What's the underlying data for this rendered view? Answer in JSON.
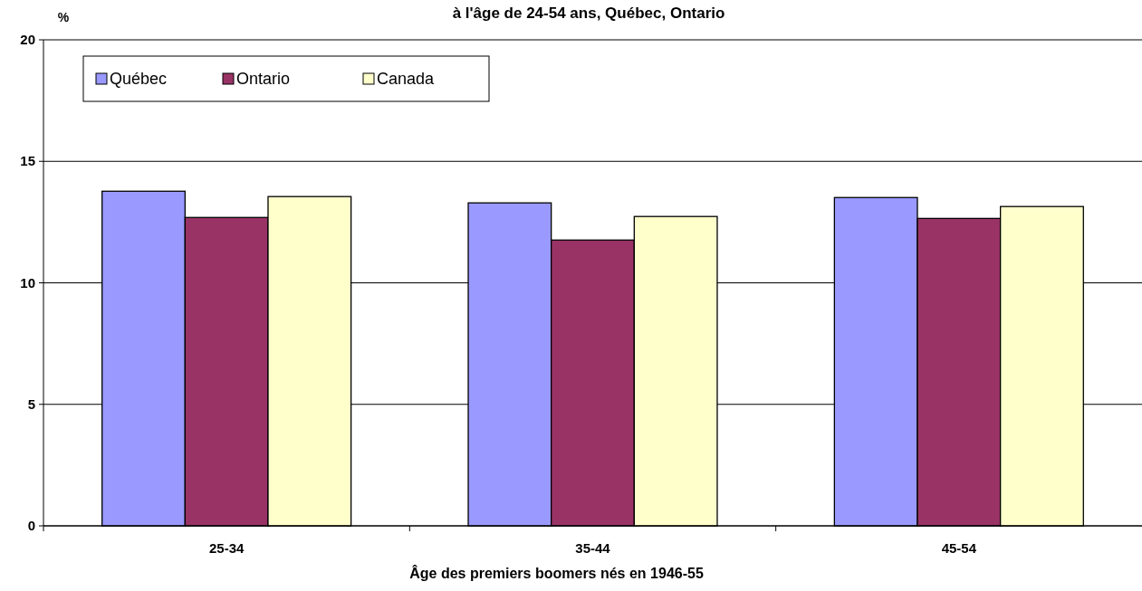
{
  "chart_data": {
    "type": "bar",
    "title": "à l'âge de 24-54 ans, Québec, Ontario",
    "ylabel": "%",
    "xlabel": "Âge des premiers boomers nés en 1946-55",
    "categories": [
      "25-34",
      "35-44",
      "45-54"
    ],
    "series": [
      {
        "name": "Québec",
        "color": "#9999ff",
        "values": [
          13.77,
          13.29,
          13.51
        ]
      },
      {
        "name": "Ontario",
        "color": "#993366",
        "values": [
          12.69,
          11.76,
          12.65
        ]
      },
      {
        "name": "Canada",
        "color": "#ffffcc",
        "values": [
          13.55,
          12.73,
          13.14
        ]
      }
    ],
    "ylim": [
      0,
      20
    ],
    "yticks": [
      0,
      5,
      10,
      15,
      20
    ],
    "grid": "y",
    "legend": "top left"
  }
}
